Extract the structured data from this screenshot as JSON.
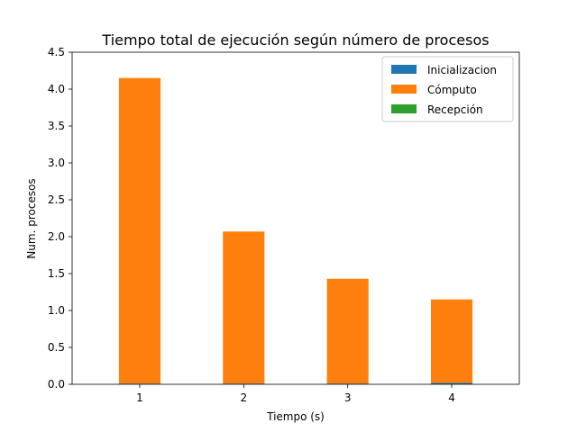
{
  "chart_data": {
    "type": "bar",
    "stacked": true,
    "title": "Tiempo total de ejecución según número de procesos",
    "xlabel": "Tiempo (s)",
    "ylabel": "Num. procesos",
    "categories": [
      "1",
      "2",
      "3",
      "4"
    ],
    "series": [
      {
        "name": "Inicializacion",
        "color": "#1f77b4",
        "values": [
          0.01,
          0.01,
          0.01,
          0.02
        ]
      },
      {
        "name": "Cómputo",
        "color": "#ff7f0e",
        "values": [
          4.14,
          2.06,
          1.42,
          1.13
        ]
      },
      {
        "name": "Recepción",
        "color": "#2ca02c",
        "values": [
          0.0,
          0.0,
          0.0,
          0.0
        ]
      }
    ],
    "ylim": [
      0,
      4.5
    ],
    "yticks": [
      "0.0",
      "0.5",
      "1.0",
      "1.5",
      "2.0",
      "2.5",
      "3.0",
      "3.5",
      "4.0",
      "4.5"
    ],
    "legend_position": "top-right",
    "grid": false
  }
}
